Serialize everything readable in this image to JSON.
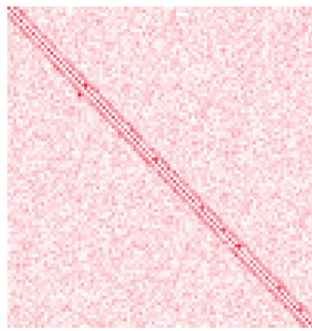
{
  "chart_data": {
    "type": "heatmap",
    "title": "",
    "xlabel": "",
    "ylabel": "",
    "rows": 100,
    "cols": 100,
    "colormap": {
      "low": "#ffffff",
      "high": "#e8102a"
    },
    "value_range": [
      0,
      1
    ],
    "background_level": 0.18,
    "background_noise": 0.22,
    "diagonal": {
      "main_band_strength": 0.55,
      "offset_band_strength": 0.35,
      "offset_band_width_cells": 3,
      "hotspots": [
        {
          "row": 4,
          "col": 4,
          "value": 0.75
        },
        {
          "row": 24,
          "col": 25,
          "value": 0.9
        },
        {
          "row": 27,
          "col": 23,
          "value": 0.95
        },
        {
          "row": 38,
          "col": 40,
          "value": 0.7
        },
        {
          "row": 47,
          "col": 48,
          "value": 0.8
        },
        {
          "row": 50,
          "col": 52,
          "value": 0.7
        },
        {
          "row": 62,
          "col": 63,
          "value": 0.75
        },
        {
          "row": 69,
          "col": 70,
          "value": 0.8
        },
        {
          "row": 74,
          "col": 75,
          "value": 0.85
        },
        {
          "row": 77,
          "col": 74,
          "value": 0.7
        },
        {
          "row": 87,
          "col": 88,
          "value": 0.75
        },
        {
          "row": 94,
          "col": 95,
          "value": 0.7
        }
      ]
    },
    "grid": false,
    "legend": "none"
  }
}
